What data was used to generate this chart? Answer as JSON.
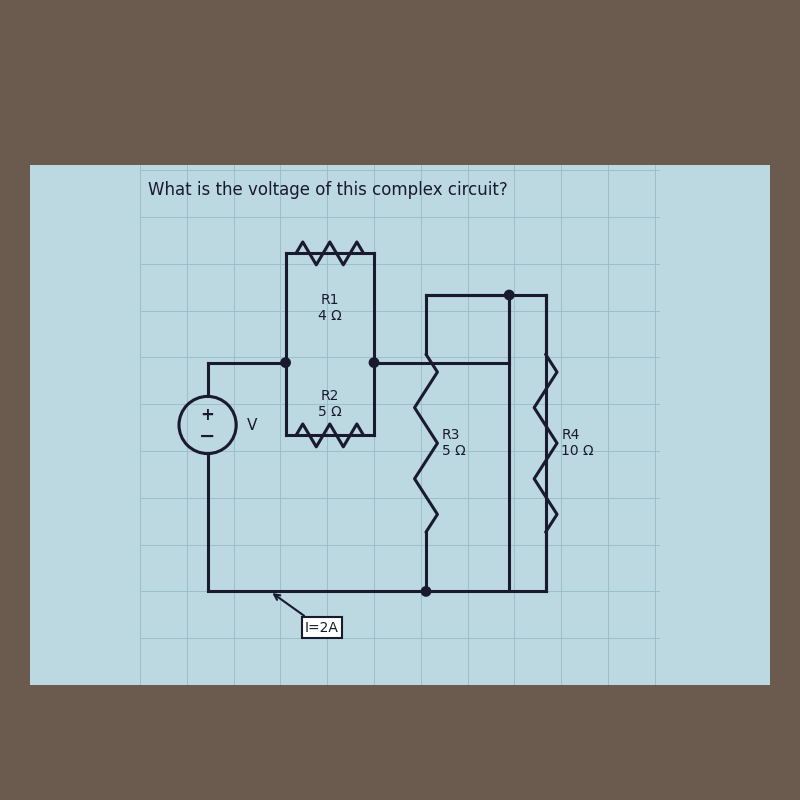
{
  "title": "What is the voltage of this complex circuit?",
  "bg_outer_top": "#6b5a4e",
  "bg_outer_bottom": "#3a3330",
  "bg_inner": "#bcd8e0",
  "grid_color": "#9bbfc8",
  "line_color": "#1a1a2e",
  "text_color": "#1a1a2e",
  "title_fontsize": 12,
  "label_fontsize": 10,
  "r1_label": "R1\n4 Ω",
  "r2_label": "R2\n5 Ω",
  "r3_label": "R3\n5 Ω",
  "r4_label": "R4\n10 Ω",
  "current_label": "I=2A",
  "voltage_label": "V"
}
